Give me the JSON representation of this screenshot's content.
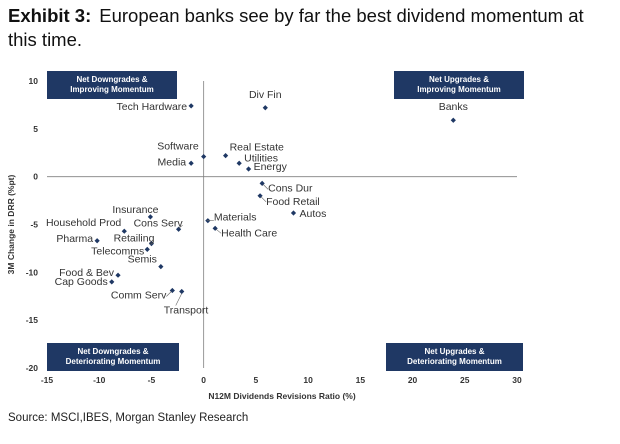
{
  "header": {
    "exhibit": "Exhibit 3:",
    "title": "European banks see by far the best dividend momentum at this time."
  },
  "source": "Source: MSCI,IBES, Morgan Stanley Research",
  "colors": {
    "marker": "#1f3864",
    "box": "#1f3864",
    "axis": "#808080",
    "label": "#333333"
  },
  "chart_data": {
    "type": "scatter",
    "xlabel": "N12M Dividends Revisions Ratio (%)",
    "ylabel": "3M Change in DRR (%pt)",
    "xlim": [
      -15,
      30
    ],
    "ylim": [
      -20,
      10
    ],
    "xticks": [
      -15,
      -10,
      -5,
      0,
      5,
      10,
      15,
      20,
      25,
      30
    ],
    "yticks": [
      10,
      5,
      0,
      -5,
      -10,
      -15,
      -20
    ],
    "quadrant_labels": [
      {
        "id": "tl",
        "text": [
          "Net Downgrades &",
          "Improving Momentum"
        ]
      },
      {
        "id": "tr",
        "text": [
          "Net Upgrades &",
          "Improving Momentum"
        ]
      },
      {
        "id": "bl",
        "text": [
          "Net Downgrades &",
          "Deteriorating Momentum"
        ]
      },
      {
        "id": "br",
        "text": [
          "Net Upgrades &",
          "Deteriorating Momentum"
        ]
      }
    ],
    "points": [
      {
        "label": "Tech Hardware",
        "x": -1.2,
        "y": 7.4
      },
      {
        "label": "Div Fin",
        "x": 5.9,
        "y": 7.2
      },
      {
        "label": "Banks",
        "x": 23.9,
        "y": 5.9
      },
      {
        "label": "Software",
        "x": 0.0,
        "y": 2.1
      },
      {
        "label": "Media",
        "x": -1.2,
        "y": 1.4
      },
      {
        "label": "Real Estate",
        "x": 2.1,
        "y": 2.2
      },
      {
        "label": "Utilities",
        "x": 3.4,
        "y": 1.4
      },
      {
        "label": "Energy",
        "x": 4.3,
        "y": 0.8
      },
      {
        "label": "Cons Dur",
        "x": 5.6,
        "y": -0.7
      },
      {
        "label": "Food Retail",
        "x": 5.4,
        "y": -2.0
      },
      {
        "label": "Autos",
        "x": 8.6,
        "y": -3.8
      },
      {
        "label": "Materials",
        "x": 0.4,
        "y": -4.6
      },
      {
        "label": "Health Care",
        "x": 1.1,
        "y": -5.4
      },
      {
        "label": "Insurance",
        "x": -5.1,
        "y": -4.2
      },
      {
        "label": "Cons Serv",
        "x": -2.4,
        "y": -5.5
      },
      {
        "label": "Household Prod",
        "x": -7.6,
        "y": -5.7
      },
      {
        "label": "Retailing",
        "x": -5.0,
        "y": -7.0
      },
      {
        "label": "Pharma",
        "x": -10.2,
        "y": -6.7
      },
      {
        "label": "Telecomms",
        "x": -5.4,
        "y": -7.6
      },
      {
        "label": "Semis",
        "x": -4.1,
        "y": -9.4
      },
      {
        "label": "Food & Bev",
        "x": -8.2,
        "y": -10.3
      },
      {
        "label": "Cap Goods",
        "x": -8.8,
        "y": -11.0
      },
      {
        "label": "Comm Serv",
        "x": -3.0,
        "y": -11.9
      },
      {
        "label": "Transport",
        "x": -2.1,
        "y": -12.0
      }
    ]
  }
}
